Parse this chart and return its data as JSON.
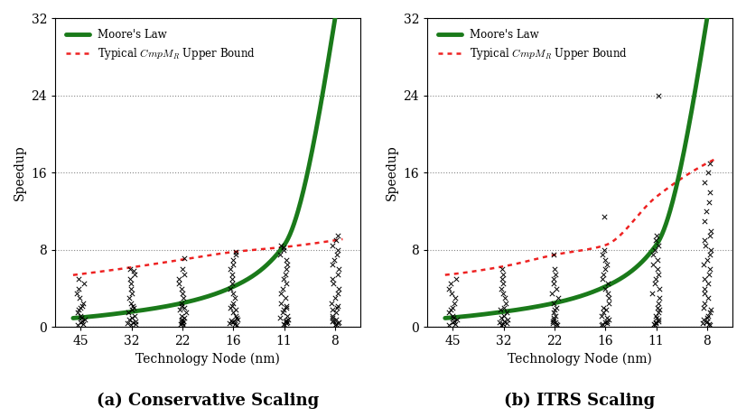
{
  "tech_nodes": [
    45,
    32,
    22,
    16,
    11,
    8
  ],
  "ylim": [
    0,
    32
  ],
  "yticks": [
    0,
    8,
    16,
    24,
    32
  ],
  "moore_law_color": "#1a7a1a",
  "upper_bound_color": "#ee2222",
  "scatter_color": "#000000",
  "title_a": "(a) Conservative Scaling",
  "title_b": "(b) ITRS Scaling",
  "xlabel": "Technology Node (nm)",
  "ylabel": "Speedup",
  "legend_line1": "Moore's Law",
  "legend_line2": "Typical $CmpM_R$ Upper Bound",
  "moore_x": [
    1,
    2,
    3,
    4,
    5,
    6
  ],
  "moore_y": [
    1.0,
    1.6,
    2.5,
    4.2,
    8.5,
    32.0
  ],
  "ub_a_x": [
    1,
    2,
    3,
    4,
    5,
    6
  ],
  "ub_a_y": [
    5.5,
    6.2,
    7.0,
    7.8,
    8.3,
    9.0
  ],
  "ub_b_x": [
    1,
    2,
    3,
    4,
    5,
    6
  ],
  "ub_b_y": [
    5.5,
    6.3,
    7.5,
    8.5,
    13.5,
    17.0
  ],
  "scatter_a": {
    "1": [
      0.2,
      0.3,
      0.5,
      0.6,
      0.8,
      1.0,
      1.2,
      1.5,
      1.8,
      2.0,
      2.2,
      2.5,
      3.0,
      3.5,
      4.0,
      4.5,
      5.0
    ],
    "2": [
      0.2,
      0.3,
      0.4,
      0.5,
      0.6,
      0.8,
      1.0,
      1.2,
      1.5,
      1.8,
      2.0,
      2.2,
      2.5,
      3.0,
      3.5,
      4.0,
      4.5,
      5.0,
      5.5,
      5.8,
      6.0
    ],
    "3": [
      0.2,
      0.3,
      0.4,
      0.5,
      0.6,
      0.7,
      0.8,
      1.0,
      1.2,
      1.5,
      1.8,
      2.0,
      2.2,
      2.5,
      3.0,
      3.5,
      4.0,
      4.5,
      5.0,
      5.5,
      6.0,
      7.2
    ],
    "4": [
      0.2,
      0.3,
      0.4,
      0.5,
      0.6,
      0.7,
      0.8,
      1.0,
      1.2,
      1.5,
      1.8,
      2.0,
      2.2,
      2.5,
      3.0,
      3.5,
      4.0,
      4.5,
      5.0,
      5.5,
      6.0,
      6.5,
      7.0,
      7.5,
      7.8
    ],
    "5": [
      0.2,
      0.3,
      0.4,
      0.5,
      0.6,
      0.7,
      0.8,
      1.0,
      1.2,
      1.5,
      1.8,
      2.0,
      2.2,
      2.5,
      3.0,
      3.5,
      4.0,
      4.5,
      5.0,
      5.5,
      6.0,
      6.5,
      7.0,
      7.5,
      8.0,
      8.3,
      8.5
    ],
    "6": [
      0.2,
      0.3,
      0.4,
      0.5,
      0.6,
      0.7,
      0.8,
      1.0,
      1.2,
      1.5,
      1.8,
      2.0,
      2.2,
      2.5,
      3.0,
      3.5,
      4.0,
      4.5,
      5.0,
      5.5,
      6.0,
      6.5,
      7.0,
      7.5,
      8.0,
      8.5,
      9.0,
      9.5
    ]
  },
  "scatter_b": {
    "1": [
      0.2,
      0.3,
      0.5,
      0.6,
      0.8,
      1.0,
      1.2,
      1.5,
      1.8,
      2.0,
      2.5,
      3.0,
      3.5,
      4.0,
      4.5,
      5.0
    ],
    "2": [
      0.2,
      0.3,
      0.4,
      0.5,
      0.6,
      0.8,
      1.0,
      1.2,
      1.5,
      1.8,
      2.0,
      2.5,
      3.0,
      3.5,
      4.0,
      4.5,
      5.0,
      5.5,
      6.0
    ],
    "3": [
      0.2,
      0.3,
      0.4,
      0.5,
      0.6,
      0.8,
      1.0,
      1.2,
      1.5,
      1.8,
      2.0,
      2.5,
      3.0,
      3.5,
      4.0,
      4.5,
      5.0,
      5.5,
      6.0,
      7.5
    ],
    "4": [
      0.2,
      0.3,
      0.4,
      0.5,
      0.6,
      0.8,
      1.0,
      1.2,
      1.5,
      1.8,
      2.0,
      2.5,
      3.0,
      3.5,
      4.0,
      4.5,
      5.0,
      5.5,
      6.0,
      6.5,
      7.0,
      7.5,
      8.0,
      11.5
    ],
    "5": [
      0.2,
      0.3,
      0.4,
      0.5,
      0.6,
      0.8,
      1.0,
      1.2,
      1.5,
      1.8,
      2.0,
      2.5,
      3.0,
      3.5,
      4.0,
      4.5,
      5.0,
      5.5,
      6.0,
      6.5,
      7.0,
      7.5,
      8.0,
      8.5,
      9.0,
      9.5,
      24.0
    ],
    "6": [
      0.2,
      0.3,
      0.4,
      0.5,
      0.6,
      0.8,
      1.0,
      1.2,
      1.5,
      1.8,
      2.0,
      2.5,
      3.0,
      3.5,
      4.0,
      4.5,
      5.0,
      5.5,
      6.0,
      6.5,
      7.0,
      7.5,
      8.0,
      8.5,
      9.0,
      9.5,
      10.0,
      11.0,
      12.0,
      13.0,
      14.0,
      15.0,
      16.0,
      17.0
    ]
  }
}
